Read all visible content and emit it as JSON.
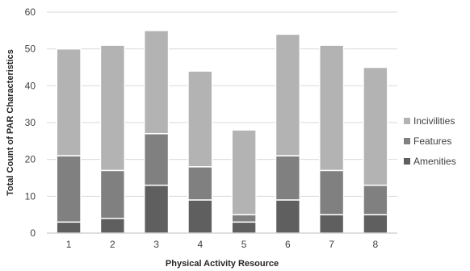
{
  "chart_data": {
    "type": "bar",
    "stacked": true,
    "categories": [
      "1",
      "2",
      "3",
      "4",
      "5",
      "6",
      "7",
      "8"
    ],
    "series": [
      {
        "name": "Amenities",
        "values": [
          3,
          4,
          13,
          9,
          3,
          9,
          5,
          5
        ],
        "color": "#5f5f5f"
      },
      {
        "name": "Features",
        "values": [
          18,
          13,
          14,
          9,
          2,
          12,
          12,
          8
        ],
        "color": "#808080"
      },
      {
        "name": "Incivilities",
        "values": [
          29,
          34,
          28,
          26,
          23,
          33,
          34,
          32
        ],
        "color": "#b3b3b3"
      }
    ],
    "xlabel": "Physical Activity Resource",
    "ylabel": "Total Count of PAR Characteristics",
    "ylim": [
      0,
      60
    ],
    "yticks": [
      0,
      10,
      20,
      30,
      40,
      50,
      60
    ],
    "grid": true,
    "legend_position": "right"
  }
}
